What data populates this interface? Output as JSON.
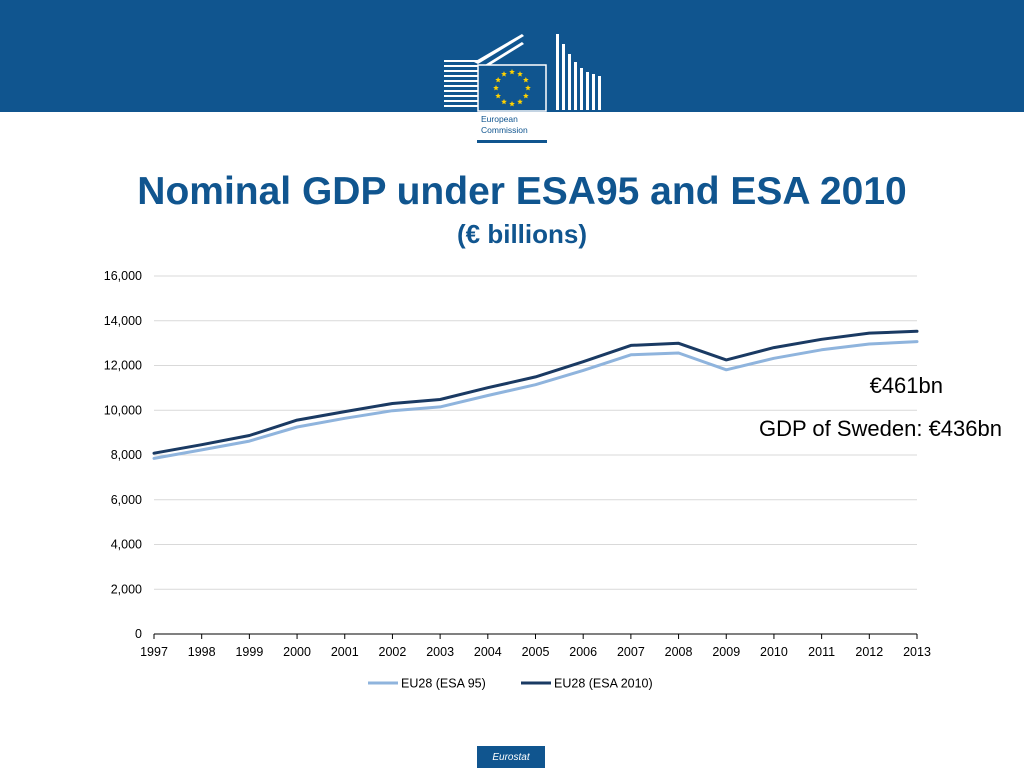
{
  "header": {
    "band_color": "#10558f",
    "logo": {
      "line1": "European",
      "line2": "Commission",
      "icon": "eu-flag-building-logo"
    }
  },
  "title": "Nominal GDP under ESA95 and ESA 2010",
  "subtitle": "(€ billions)",
  "annotations": {
    "value": "€461bn",
    "comparison": "GDP of Sweden: €436bn"
  },
  "footer": {
    "tab_label": "Eurostat"
  },
  "chart_data": {
    "type": "line",
    "title": "Nominal GDP under ESA95 and ESA 2010",
    "subtitle": "(€ billions)",
    "xlabel": "",
    "ylabel": "",
    "x": [
      "1997",
      "1998",
      "1999",
      "2000",
      "2001",
      "2002",
      "2003",
      "2004",
      "2005",
      "2006",
      "2007",
      "2008",
      "2009",
      "2010",
      "2011",
      "2012",
      "2013"
    ],
    "y_ticks": [
      "0",
      "2,000",
      "4,000",
      "6,000",
      "8,000",
      "10,000",
      "12,000",
      "14,000",
      "16,000"
    ],
    "ylim": [
      0,
      16000
    ],
    "grid": true,
    "legend_position": "bottom",
    "series": [
      {
        "name": "EU28 (ESA 95)",
        "color": "#8fb4dd",
        "values": [
          7850,
          8230,
          8620,
          9250,
          9640,
          9980,
          10150,
          10660,
          11140,
          11780,
          12480,
          12560,
          11810,
          12320,
          12700,
          12960,
          13070
        ]
      },
      {
        "name": "EU28 (ESA 2010)",
        "color": "#1a3a63",
        "values": [
          8080,
          8460,
          8870,
          9560,
          9940,
          10300,
          10480,
          11010,
          11490,
          12170,
          12900,
          12990,
          12250,
          12800,
          13170,
          13450,
          13530
        ]
      }
    ]
  }
}
